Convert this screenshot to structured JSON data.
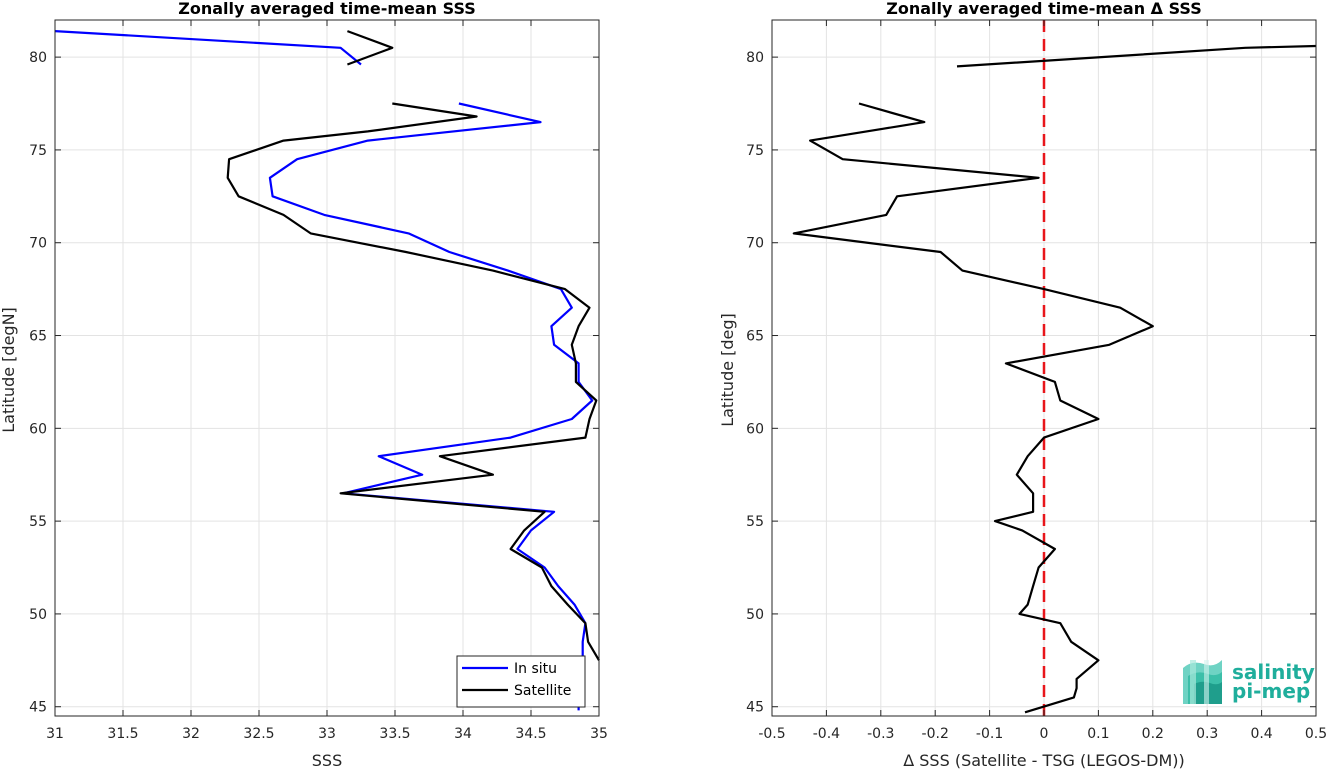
{
  "chart_data": [
    {
      "type": "line",
      "title": "Zonally averaged time-mean SSS",
      "xlabel": "SSS",
      "ylabel": "Latitude [degN]",
      "xlim": [
        31,
        35
      ],
      "ylim": [
        44.5,
        82
      ],
      "xticks": [
        "31",
        "31.5",
        "32",
        "32.5",
        "33",
        "33.5",
        "34",
        "34.5",
        "35"
      ],
      "yticks": [
        "45",
        "50",
        "55",
        "60",
        "65",
        "70",
        "75",
        "80"
      ],
      "grid": true,
      "legend_position": "bottom-right",
      "series": [
        {
          "name": "In situ",
          "color": "#0000ff",
          "points": [
            [
              31.0,
              81.4
            ],
            [
              33.1,
              80.5
            ],
            [
              33.25,
              79.6
            ],
            null,
            [
              33.97,
              77.5
            ],
            [
              34.57,
              76.5
            ],
            [
              33.3,
              75.5
            ],
            [
              32.78,
              74.5
            ],
            [
              32.58,
              73.5
            ],
            [
              32.6,
              72.5
            ],
            [
              32.98,
              71.5
            ],
            [
              33.6,
              70.5
            ],
            [
              33.9,
              69.5
            ],
            [
              34.33,
              68.5
            ],
            [
              34.72,
              67.5
            ],
            [
              34.8,
              66.5
            ],
            [
              34.65,
              65.5
            ],
            [
              34.67,
              64.5
            ],
            [
              34.85,
              63.5
            ],
            [
              34.85,
              62.5
            ],
            [
              34.95,
              61.5
            ],
            [
              34.8,
              60.5
            ],
            [
              34.35,
              59.5
            ],
            [
              33.38,
              58.5
            ],
            [
              33.7,
              57.5
            ],
            [
              33.12,
              56.5
            ],
            [
              34.67,
              55.5
            ],
            [
              34.5,
              54.5
            ],
            [
              34.4,
              53.5
            ],
            [
              34.6,
              52.5
            ],
            [
              34.7,
              51.5
            ],
            [
              34.82,
              50.5
            ],
            [
              34.9,
              49.5
            ],
            [
              34.88,
              48.5
            ],
            [
              34.88,
              47.5
            ],
            [
              34.87,
              46.5
            ],
            [
              34.85,
              45.5
            ],
            [
              34.85,
              44.8
            ]
          ]
        },
        {
          "name": "Satellite",
          "color": "#000000",
          "points": [
            [
              33.15,
              81.4
            ],
            [
              33.48,
              80.5
            ],
            [
              33.15,
              79.6
            ],
            null,
            [
              33.48,
              77.5
            ],
            [
              34.1,
              76.8
            ],
            [
              33.3,
              76.0
            ],
            [
              32.68,
              75.5
            ],
            [
              32.28,
              74.5
            ],
            [
              32.27,
              73.5
            ],
            [
              32.35,
              72.5
            ],
            [
              32.68,
              71.5
            ],
            [
              32.88,
              70.5
            ],
            [
              33.58,
              69.5
            ],
            [
              34.22,
              68.5
            ],
            [
              34.75,
              67.5
            ],
            [
              34.93,
              66.5
            ],
            [
              34.85,
              65.5
            ],
            [
              34.8,
              64.5
            ],
            [
              34.83,
              63.5
            ],
            [
              34.83,
              62.5
            ],
            [
              34.98,
              61.5
            ],
            [
              34.93,
              60.5
            ],
            [
              34.9,
              59.5
            ],
            [
              33.83,
              58.5
            ],
            [
              34.22,
              57.5
            ],
            [
              33.1,
              56.5
            ],
            [
              34.6,
              55.5
            ],
            [
              34.45,
              54.5
            ],
            [
              34.35,
              53.5
            ],
            [
              34.58,
              52.5
            ],
            [
              34.65,
              51.5
            ],
            [
              34.77,
              50.5
            ],
            [
              34.9,
              49.5
            ],
            [
              34.92,
              48.5
            ],
            [
              35.0,
              47.5
            ]
          ]
        }
      ]
    },
    {
      "type": "line",
      "title": "Zonally averaged time-mean Δ SSS",
      "xlabel": "Δ SSS (Satellite - TSG (LEGOS-DM))",
      "ylabel": "Latitude [deg]",
      "xlim": [
        -0.5,
        0.5
      ],
      "ylim": [
        44.5,
        82
      ],
      "xticks": [
        "-0.5",
        "-0.4",
        "-0.3",
        "-0.2",
        "-0.1",
        "0",
        "0.1",
        "0.2",
        "0.3",
        "0.4",
        "0.5"
      ],
      "yticks": [
        "45",
        "50",
        "55",
        "60",
        "65",
        "70",
        "75",
        "80"
      ],
      "grid": true,
      "zero_line": {
        "x": 0,
        "color": "#e8161b",
        "style": "dashed"
      },
      "series": [
        {
          "color": "#000000",
          "points": [
            [
              0.5,
              80.6
            ],
            [
              0.37,
              80.5
            ],
            [
              -0.16,
              79.5
            ],
            null,
            [
              -0.34,
              77.5
            ],
            [
              -0.22,
              76.5
            ],
            [
              -0.43,
              75.5
            ],
            [
              -0.37,
              74.5
            ],
            [
              -0.01,
              73.5
            ],
            [
              -0.27,
              72.5
            ],
            [
              -0.29,
              71.5
            ],
            [
              -0.46,
              70.5
            ],
            [
              -0.19,
              69.5
            ],
            [
              -0.15,
              68.5
            ],
            [
              0.0,
              67.5
            ],
            [
              0.14,
              66.5
            ],
            [
              0.2,
              65.5
            ],
            [
              0.12,
              64.5
            ],
            [
              -0.07,
              63.5
            ],
            [
              0.02,
              62.5
            ],
            [
              0.03,
              61.5
            ],
            [
              0.1,
              60.5
            ],
            [
              0.0,
              59.5
            ],
            [
              -0.03,
              58.5
            ],
            [
              -0.05,
              57.5
            ],
            [
              -0.02,
              56.5
            ],
            [
              -0.02,
              55.5
            ],
            [
              -0.09,
              55.0
            ],
            [
              -0.04,
              54.5
            ],
            [
              0.02,
              53.5
            ],
            [
              -0.01,
              52.5
            ],
            [
              -0.02,
              51.5
            ],
            [
              -0.03,
              50.5
            ],
            [
              -0.045,
              50.0
            ],
            [
              0.03,
              49.5
            ],
            [
              0.05,
              48.5
            ],
            [
              0.1,
              47.5
            ],
            [
              0.06,
              46.5
            ],
            [
              0.06,
              46.0
            ],
            [
              0.055,
              45.5
            ],
            [
              -0.035,
              44.7
            ]
          ]
        }
      ]
    }
  ],
  "logo": {
    "line1": "salinity",
    "line2": "pi-mep"
  }
}
